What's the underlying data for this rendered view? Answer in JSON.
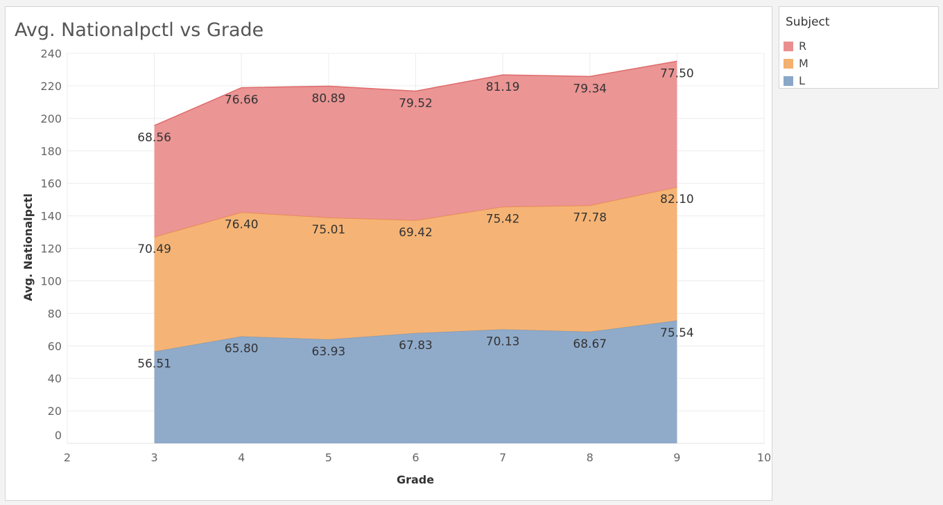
{
  "chart_data": {
    "type": "area",
    "stacked": true,
    "title": "Avg. Nationalpctl vs Grade",
    "xlabel": "Grade",
    "ylabel": "Avg. Nationalpctl",
    "x": [
      3,
      4,
      5,
      6,
      7,
      8,
      9
    ],
    "xlim": [
      2,
      10
    ],
    "ylim": [
      0,
      240
    ],
    "x_ticks": [
      2,
      3,
      4,
      5,
      6,
      7,
      8,
      9,
      10
    ],
    "y_ticks": [
      0,
      20,
      40,
      60,
      80,
      100,
      120,
      140,
      160,
      180,
      200,
      220,
      240
    ],
    "grid": true,
    "legend_title": "Subject",
    "legend_position": "right",
    "series": [
      {
        "name": "L",
        "color": "#8aa7c7",
        "values": [
          56.51,
          65.8,
          63.93,
          67.83,
          70.13,
          68.67,
          75.54
        ]
      },
      {
        "name": "M",
        "color": "#f4b06e",
        "values": [
          70.49,
          76.4,
          75.01,
          69.42,
          75.42,
          77.78,
          82.1
        ]
      },
      {
        "name": "R",
        "color": "#ea8f8f",
        "values": [
          68.56,
          76.66,
          80.89,
          79.52,
          81.19,
          79.34,
          77.5
        ]
      }
    ],
    "legend_order": [
      "R",
      "M",
      "L"
    ]
  }
}
